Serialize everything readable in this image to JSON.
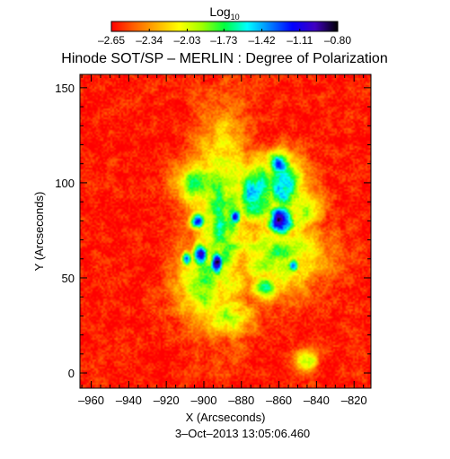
{
  "chart_data": {
    "type": "heatmap",
    "title": "Hinode SOT/SP – MERLIN : Degree of Polarization",
    "xlabel": "X (Arcseconds)",
    "ylabel": "Y (Arcseconds)",
    "timestamp": "3–Oct–2013 13:05:06.460",
    "x_range": [
      -966,
      -811
    ],
    "y_range": [
      -8,
      157
    ],
    "x_ticks": [
      -960,
      -940,
      -920,
      -900,
      -880,
      -860,
      -840,
      -820
    ],
    "x_tick_labels": [
      "–960",
      "–940",
      "–920",
      "–900",
      "–880",
      "–860",
      "–840",
      "–820"
    ],
    "y_ticks": [
      0,
      50,
      100,
      150
    ],
    "y_tick_labels": [
      "0",
      "50",
      "100",
      "150"
    ],
    "colorbar": {
      "label_base": "Log",
      "label_sub": "10",
      "range": [
        -2.65,
        -0.8
      ],
      "ticks": [
        -2.65,
        -2.34,
        -2.03,
        -1.73,
        -1.42,
        -1.11,
        -0.8
      ],
      "tick_labels": [
        "–2.65",
        "–2.34",
        "–2.03",
        "–1.73",
        "–1.42",
        "–1.11",
        "–0.80"
      ],
      "colors": [
        "#ff0000",
        "#ff6000",
        "#ffb000",
        "#ffff00",
        "#a0ff00",
        "#00ff40",
        "#00ffff",
        "#0080ff",
        "#0000ff",
        "#4000c0",
        "#000000"
      ]
    },
    "background_value": -2.6,
    "features": [
      {
        "x": -890,
        "y": 80,
        "sx": 10,
        "sy": 35,
        "value": -1.75
      },
      {
        "x": -872,
        "y": 95,
        "sx": 8,
        "sy": 12,
        "value": -1.45
      },
      {
        "x": -900,
        "y": 48,
        "sx": 10,
        "sy": 15,
        "value": -1.8
      },
      {
        "x": -858,
        "y": 98,
        "sx": 8,
        "sy": 11,
        "value": -1.55
      },
      {
        "x": -860,
        "y": 62,
        "sx": 16,
        "sy": 13,
        "value": -1.85
      },
      {
        "x": -848,
        "y": 85,
        "sx": 7,
        "sy": 9,
        "value": -1.95
      },
      {
        "x": -888,
        "y": 30,
        "sx": 11,
        "sy": 8,
        "value": -2.0
      },
      {
        "x": -903,
        "y": 100,
        "sx": 8,
        "sy": 8,
        "value": -1.7
      },
      {
        "x": -859,
        "y": 80,
        "sx": 5,
        "sy": 6,
        "value": -0.85
      },
      {
        "x": -902,
        "y": 62,
        "sx": 3,
        "sy": 5,
        "value": -1.05
      },
      {
        "x": -893,
        "y": 58,
        "sx": 2.5,
        "sy": 5,
        "value": -0.95
      },
      {
        "x": -903,
        "y": 80,
        "sx": 3,
        "sy": 3,
        "value": -1.2
      },
      {
        "x": -883,
        "y": 82,
        "sx": 2.5,
        "sy": 3,
        "value": -1.25
      },
      {
        "x": -909,
        "y": 60,
        "sx": 2,
        "sy": 3,
        "value": -1.3
      },
      {
        "x": -852,
        "y": 57,
        "sx": 2.5,
        "sy": 3,
        "value": -1.3
      },
      {
        "x": -845,
        "y": 7,
        "sx": 4,
        "sy": 4,
        "value": -1.9
      },
      {
        "x": -860,
        "y": 110,
        "sx": 5,
        "sy": 5,
        "value": -1.4
      },
      {
        "x": -868,
        "y": 45,
        "sx": 5,
        "sy": 5,
        "value": -1.7
      }
    ]
  }
}
